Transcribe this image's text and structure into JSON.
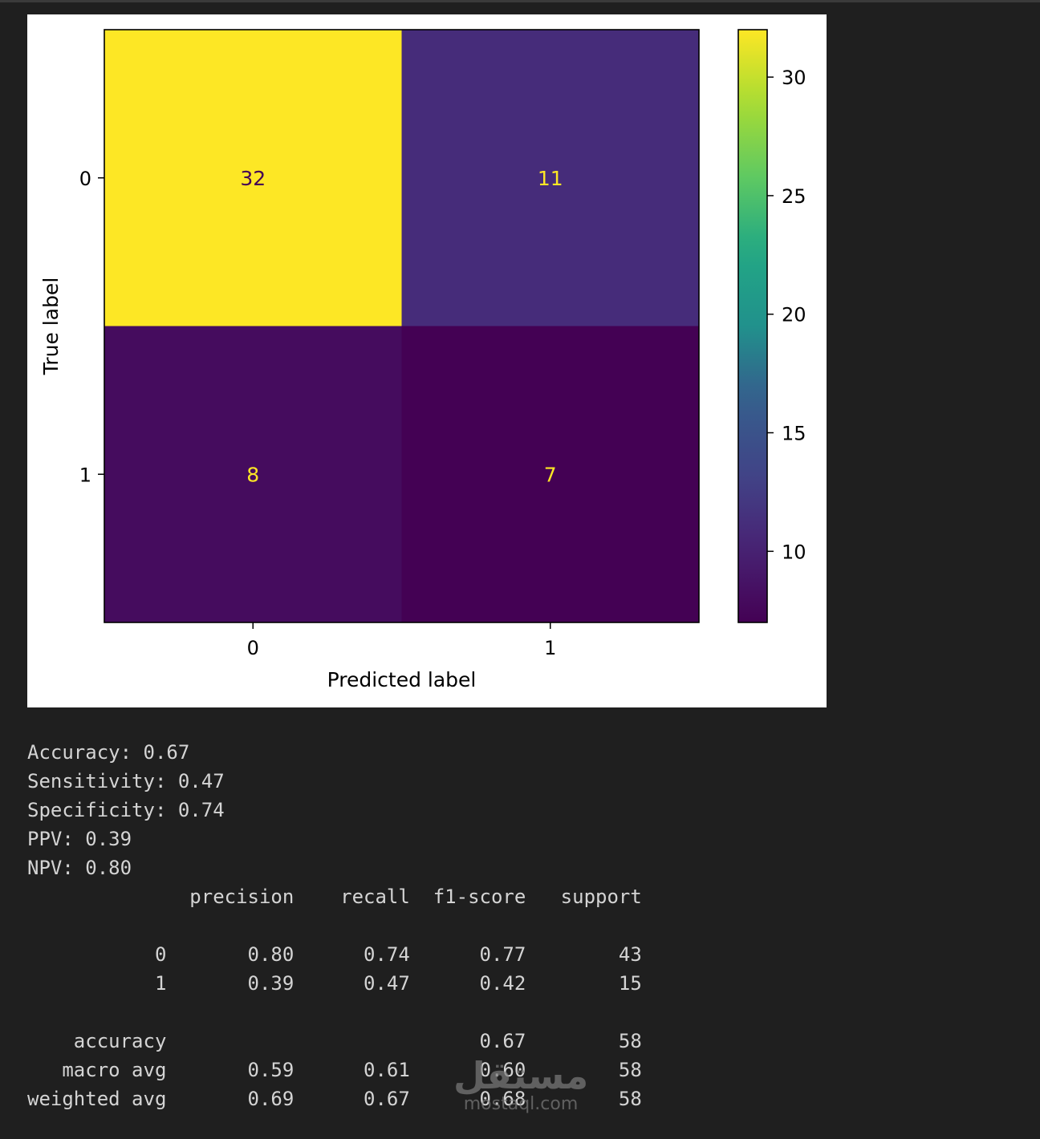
{
  "chart_data": {
    "type": "heatmap",
    "xlabel": "Predicted label",
    "ylabel": "True label",
    "x_categories": [
      "0",
      "1"
    ],
    "y_categories": [
      "0",
      "1"
    ],
    "matrix": [
      [
        32,
        11
      ],
      [
        8,
        7
      ]
    ],
    "colormap": "viridis",
    "color_range": [
      7,
      32
    ],
    "colorbar_ticks": [
      "30",
      "25",
      "20",
      "15",
      "10"
    ],
    "colorbar_tick_values": [
      30,
      25,
      20,
      15,
      10
    ],
    "grid": false,
    "colors": {
      "low_text": "#fde725",
      "high_text": "#440154"
    }
  },
  "metrics": {
    "accuracy": "Accuracy: 0.67",
    "sensitivity": "Sensitivity: 0.47",
    "specificity": "Specificity: 0.74",
    "ppv": "PPV: 0.39",
    "npv": "NPV: 0.80"
  },
  "report": {
    "header": "              precision    recall  f1-score   support",
    "blank1": "",
    "row0": "           0       0.80      0.74      0.77        43",
    "row1": "           1       0.39      0.47      0.42        15",
    "blank2": "",
    "accuracy_row": "    accuracy                           0.67        58",
    "macro_row": "   macro avg       0.59      0.61      0.60        58",
    "weighted_row": "weighted avg       0.69      0.67      0.68        58"
  },
  "watermark": {
    "logo_text": "مستقل",
    "domain": "mostaql.com"
  }
}
